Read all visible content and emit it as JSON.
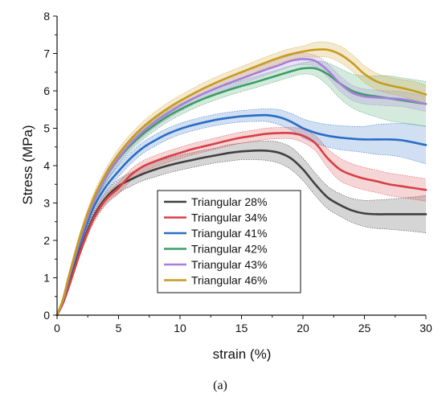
{
  "chart_data": {
    "type": "line",
    "title": "",
    "xlabel": "strain (%)",
    "ylabel": "Stress (MPa)",
    "xlim": [
      0,
      30
    ],
    "ylim": [
      0,
      8
    ],
    "x_ticks": [
      "0",
      "5",
      "10",
      "15",
      "20",
      "25",
      "30"
    ],
    "y_ticks": [
      "0",
      "1",
      "2",
      "3",
      "4",
      "5",
      "6",
      "7",
      "8"
    ],
    "grid": false,
    "legend_position": "center",
    "caption": "(a)",
    "x": [
      0,
      0.5,
      1,
      2,
      3,
      4,
      5,
      6,
      7,
      8,
      9,
      10,
      11,
      12,
      13,
      14,
      15,
      16,
      17,
      18,
      19,
      20,
      21,
      22,
      23,
      24,
      25,
      26,
      27,
      28,
      29,
      30
    ],
    "series": [
      {
        "name": "Triangular 28%",
        "color": "#404040",
        "values": [
          0,
          0.35,
          0.85,
          1.85,
          2.65,
          3.15,
          3.45,
          3.63,
          3.78,
          3.9,
          4.0,
          4.08,
          4.15,
          4.22,
          4.28,
          4.34,
          4.38,
          4.4,
          4.4,
          4.35,
          4.2,
          3.9,
          3.5,
          3.15,
          2.95,
          2.8,
          2.72,
          2.7,
          2.7,
          2.7,
          2.7,
          2.7
        ],
        "band": [
          0,
          0.03,
          0.06,
          0.1,
          0.12,
          0.15,
          0.18,
          0.18,
          0.18,
          0.2,
          0.2,
          0.2,
          0.2,
          0.2,
          0.2,
          0.22,
          0.22,
          0.24,
          0.26,
          0.28,
          0.3,
          0.3,
          0.3,
          0.3,
          0.3,
          0.32,
          0.35,
          0.38,
          0.4,
          0.43,
          0.46,
          0.5
        ]
      },
      {
        "name": "Triangular 34%",
        "color": "#d64045",
        "values": [
          0,
          0.33,
          0.8,
          1.8,
          2.6,
          3.1,
          3.4,
          3.75,
          3.98,
          4.12,
          4.24,
          4.34,
          4.44,
          4.52,
          4.6,
          4.68,
          4.75,
          4.8,
          4.85,
          4.87,
          4.87,
          4.8,
          4.6,
          4.2,
          3.9,
          3.75,
          3.65,
          3.58,
          3.5,
          3.45,
          3.4,
          3.35
        ],
        "band": [
          0,
          0.03,
          0.06,
          0.1,
          0.12,
          0.14,
          0.15,
          0.15,
          0.15,
          0.15,
          0.15,
          0.15,
          0.15,
          0.15,
          0.15,
          0.15,
          0.15,
          0.15,
          0.15,
          0.15,
          0.15,
          0.18,
          0.2,
          0.25,
          0.3,
          0.3,
          0.3,
          0.3,
          0.3,
          0.3,
          0.3,
          0.3
        ]
      },
      {
        "name": "Triangular 41%",
        "color": "#2a6cc4",
        "values": [
          0,
          0.4,
          1.0,
          2.05,
          2.9,
          3.45,
          3.85,
          4.2,
          4.48,
          4.68,
          4.85,
          4.98,
          5.08,
          5.16,
          5.23,
          5.28,
          5.32,
          5.34,
          5.35,
          5.3,
          5.18,
          5.0,
          4.88,
          4.8,
          4.75,
          4.72,
          4.7,
          4.7,
          4.7,
          4.68,
          4.62,
          4.55
        ],
        "band": [
          0,
          0.03,
          0.06,
          0.1,
          0.12,
          0.14,
          0.15,
          0.15,
          0.15,
          0.15,
          0.15,
          0.15,
          0.15,
          0.15,
          0.15,
          0.15,
          0.15,
          0.16,
          0.17,
          0.2,
          0.22,
          0.25,
          0.28,
          0.3,
          0.32,
          0.33,
          0.35,
          0.4,
          0.42,
          0.45,
          0.48,
          0.5
        ]
      },
      {
        "name": "Triangular 42%",
        "color": "#3a9e63",
        "values": [
          0,
          0.42,
          1.05,
          2.15,
          3.05,
          3.7,
          4.18,
          4.55,
          4.85,
          5.1,
          5.32,
          5.5,
          5.66,
          5.8,
          5.92,
          6.03,
          6.13,
          6.22,
          6.32,
          6.42,
          6.52,
          6.6,
          6.6,
          6.45,
          6.2,
          6.0,
          5.9,
          5.85,
          5.8,
          5.75,
          5.7,
          5.65
        ],
        "band": [
          0,
          0.03,
          0.06,
          0.1,
          0.12,
          0.14,
          0.15,
          0.15,
          0.15,
          0.15,
          0.15,
          0.15,
          0.15,
          0.15,
          0.15,
          0.15,
          0.15,
          0.15,
          0.15,
          0.15,
          0.15,
          0.15,
          0.2,
          0.3,
          0.4,
          0.45,
          0.5,
          0.55,
          0.6,
          0.6,
          0.6,
          0.6
        ]
      },
      {
        "name": "Triangular 43%",
        "color": "#a67fdc",
        "values": [
          0,
          0.42,
          1.05,
          2.15,
          3.05,
          3.72,
          4.2,
          4.6,
          4.92,
          5.18,
          5.4,
          5.6,
          5.78,
          5.94,
          6.08,
          6.21,
          6.33,
          6.45,
          6.57,
          6.68,
          6.8,
          6.85,
          6.8,
          6.55,
          6.2,
          5.95,
          5.85,
          5.82,
          5.8,
          5.78,
          5.72,
          5.65
        ],
        "band": [
          0,
          0.03,
          0.06,
          0.1,
          0.12,
          0.14,
          0.15,
          0.15,
          0.15,
          0.15,
          0.15,
          0.15,
          0.15,
          0.15,
          0.15,
          0.15,
          0.15,
          0.15,
          0.15,
          0.15,
          0.15,
          0.15,
          0.15,
          0.18,
          0.2,
          0.2,
          0.2,
          0.2,
          0.2,
          0.2,
          0.2,
          0.2
        ]
      },
      {
        "name": "Triangular 46%",
        "color": "#c89a1e",
        "values": [
          0,
          0.45,
          1.1,
          2.25,
          3.15,
          3.8,
          4.3,
          4.7,
          5.03,
          5.3,
          5.53,
          5.73,
          5.91,
          6.08,
          6.23,
          6.37,
          6.5,
          6.63,
          6.76,
          6.88,
          6.98,
          7.05,
          7.1,
          7.1,
          6.98,
          6.75,
          6.45,
          6.25,
          6.15,
          6.08,
          6.0,
          5.9
        ],
        "band": [
          0,
          0.03,
          0.06,
          0.1,
          0.12,
          0.14,
          0.15,
          0.15,
          0.15,
          0.15,
          0.15,
          0.15,
          0.15,
          0.15,
          0.15,
          0.15,
          0.15,
          0.15,
          0.15,
          0.15,
          0.15,
          0.15,
          0.2,
          0.2,
          0.22,
          0.22,
          0.22,
          0.22,
          0.22,
          0.22,
          0.25,
          0.25
        ]
      }
    ]
  }
}
